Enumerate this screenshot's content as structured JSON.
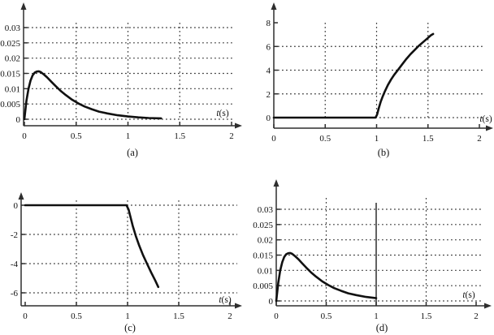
{
  "figure": {
    "description": "Four time-domain response plots arranged in a 2x2 grid, labeled (a) through (d)"
  },
  "chart_data": [
    {
      "type": "line",
      "id": "a",
      "caption": "(a)",
      "xlabel_var": "t",
      "xlabel_unit": "(s)",
      "xlim": [
        0,
        2.1
      ],
      "ylim": [
        0,
        0.033
      ],
      "grid": "dotted",
      "x_ticks": [
        {
          "t": 0,
          "label": "0"
        },
        {
          "t": 0.5,
          "label": "0.5"
        },
        {
          "t": 1,
          "label": "1"
        },
        {
          "t": 1.5,
          "label": "1.5"
        },
        {
          "t": 2,
          "label": "2"
        }
      ],
      "y_ticks": [
        {
          "v": 0,
          "label": "0",
          "grid": true
        },
        {
          "v": 0.005,
          "label": "0.005",
          "grid": true
        },
        {
          "v": 0.01,
          "label": "0.01",
          "grid": true
        },
        {
          "v": 0.015,
          "label": "0.015",
          "grid": true
        },
        {
          "v": 0.02,
          "label": "0.02",
          "grid": true
        },
        {
          "v": 0.025,
          "label": "0.025",
          "grid": true
        },
        {
          "v": 0.03,
          "label": "0.03",
          "grid": true
        }
      ],
      "v_grid": [
        0.5,
        1,
        1.5
      ],
      "points": [
        [
          0,
          0
        ],
        [
          0.02,
          0.006
        ],
        [
          0.04,
          0.01
        ],
        [
          0.06,
          0.0127
        ],
        [
          0.08,
          0.0144
        ],
        [
          0.1,
          0.0153
        ],
        [
          0.12,
          0.0156
        ],
        [
          0.14,
          0.0157
        ],
        [
          0.16,
          0.0154
        ],
        [
          0.19,
          0.0146
        ],
        [
          0.22,
          0.0137
        ],
        [
          0.26,
          0.0123
        ],
        [
          0.3,
          0.0109
        ],
        [
          0.35,
          0.0093
        ],
        [
          0.4,
          0.0079
        ],
        [
          0.46,
          0.0064
        ],
        [
          0.52,
          0.0052
        ],
        [
          0.58,
          0.0042
        ],
        [
          0.65,
          0.0033
        ],
        [
          0.72,
          0.0025
        ],
        [
          0.8,
          0.0019
        ],
        [
          0.9,
          0.0013
        ],
        [
          1.0,
          0.0009
        ],
        [
          1.1,
          0.0006
        ],
        [
          1.2,
          0.0004
        ],
        [
          1.32,
          0.0003
        ]
      ]
    },
    {
      "type": "line",
      "id": "b",
      "caption": "(b)",
      "xlabel_var": "t",
      "xlabel_unit": "(s)",
      "xlim": [
        0,
        2.1
      ],
      "ylim": [
        0,
        8.5
      ],
      "grid": "dotted",
      "x_ticks": [
        {
          "t": 0,
          "label": "0"
        },
        {
          "t": 0.5,
          "label": "0.5"
        },
        {
          "t": 1,
          "label": "1"
        },
        {
          "t": 1.5,
          "label": "1.5"
        },
        {
          "t": 2,
          "label": "2"
        }
      ],
      "y_ticks": [
        {
          "v": 0,
          "label": "0",
          "grid": true
        },
        {
          "v": 2,
          "label": "2",
          "grid": true
        },
        {
          "v": 4,
          "label": "4",
          "grid": true
        },
        {
          "v": 6,
          "label": "6",
          "grid": true
        },
        {
          "v": 8,
          "label": "8",
          "grid": false
        }
      ],
      "v_grid": [
        0.5,
        1,
        1.5
      ],
      "points": [
        [
          0,
          0
        ],
        [
          0.6,
          0
        ],
        [
          0.99,
          0
        ],
        [
          1.005,
          0.25
        ],
        [
          1.02,
          0.75
        ],
        [
          1.04,
          1.35
        ],
        [
          1.06,
          1.8
        ],
        [
          1.08,
          2.2
        ],
        [
          1.11,
          2.75
        ],
        [
          1.14,
          3.2
        ],
        [
          1.17,
          3.6
        ],
        [
          1.21,
          4.05
        ],
        [
          1.25,
          4.5
        ],
        [
          1.29,
          4.95
        ],
        [
          1.33,
          5.35
        ],
        [
          1.37,
          5.7
        ],
        [
          1.41,
          6.05
        ],
        [
          1.45,
          6.35
        ],
        [
          1.49,
          6.65
        ],
        [
          1.53,
          6.95
        ],
        [
          1.55,
          7.05
        ]
      ]
    },
    {
      "type": "line",
      "id": "c",
      "caption": "(c)",
      "xlabel_var": "t",
      "xlabel_unit": "(s)",
      "xlim": [
        0,
        2.1
      ],
      "ylim": [
        -6.5,
        0.5
      ],
      "grid": "dotted",
      "x_ticks": [
        {
          "t": 0,
          "label": "0"
        },
        {
          "t": 0.5,
          "label": "0.5"
        },
        {
          "t": 1,
          "label": "1"
        },
        {
          "t": 1.5,
          "label": "1.5"
        },
        {
          "t": 2,
          "label": "2"
        }
      ],
      "y_ticks": [
        {
          "v": 0,
          "label": "0",
          "grid": true
        },
        {
          "v": -2,
          "label": "-2",
          "grid": true
        },
        {
          "v": -4,
          "label": "-4",
          "grid": true
        },
        {
          "v": -6,
          "label": "-6",
          "grid": true
        }
      ],
      "v_grid": [
        0.5,
        1,
        1.5
      ],
      "points": [
        [
          0,
          0
        ],
        [
          0.6,
          0
        ],
        [
          0.99,
          0
        ],
        [
          1.01,
          -0.3
        ],
        [
          1.03,
          -0.85
        ],
        [
          1.05,
          -1.4
        ],
        [
          1.08,
          -2.1
        ],
        [
          1.11,
          -2.7
        ],
        [
          1.15,
          -3.4
        ],
        [
          1.19,
          -4.0
        ],
        [
          1.23,
          -4.6
        ],
        [
          1.27,
          -5.15
        ],
        [
          1.3,
          -5.6
        ]
      ]
    },
    {
      "type": "line",
      "id": "d",
      "caption": "(d)",
      "xlabel_var": "t",
      "xlabel_unit": "(s)",
      "xlim": [
        0,
        2.1
      ],
      "ylim": [
        0,
        0.033
      ],
      "grid": "dotted",
      "x_ticks": [
        {
          "t": 0,
          "label": "0"
        },
        {
          "t": 0.5,
          "label": "0.5"
        },
        {
          "t": 1,
          "label": "1"
        },
        {
          "t": 1.5,
          "label": "1.5"
        },
        {
          "t": 2,
          "label": "2"
        }
      ],
      "y_ticks": [
        {
          "v": 0,
          "label": "0",
          "grid": true
        },
        {
          "v": 0.005,
          "label": "0.005",
          "grid": true
        },
        {
          "v": 0.01,
          "label": "0.01",
          "grid": true
        },
        {
          "v": 0.015,
          "label": "0.015",
          "grid": true
        },
        {
          "v": 0.02,
          "label": "0.02",
          "grid": true
        },
        {
          "v": 0.025,
          "label": "0.025",
          "grid": true
        },
        {
          "v": 0.03,
          "label": "0.03",
          "grid": true
        }
      ],
      "v_grid": [
        0.5,
        1.5
      ],
      "vline": {
        "t": 1
      },
      "points": [
        [
          0,
          0
        ],
        [
          0.02,
          0.006
        ],
        [
          0.04,
          0.01
        ],
        [
          0.06,
          0.0127
        ],
        [
          0.08,
          0.0144
        ],
        [
          0.1,
          0.0153
        ],
        [
          0.12,
          0.0156
        ],
        [
          0.14,
          0.0157
        ],
        [
          0.16,
          0.0154
        ],
        [
          0.19,
          0.0146
        ],
        [
          0.22,
          0.0137
        ],
        [
          0.26,
          0.0123
        ],
        [
          0.3,
          0.0109
        ],
        [
          0.35,
          0.0093
        ],
        [
          0.4,
          0.0079
        ],
        [
          0.46,
          0.0064
        ],
        [
          0.52,
          0.0052
        ],
        [
          0.58,
          0.0042
        ],
        [
          0.65,
          0.0033
        ],
        [
          0.72,
          0.0025
        ],
        [
          0.8,
          0.0019
        ],
        [
          0.9,
          0.0013
        ],
        [
          1.0,
          0.0009
        ]
      ]
    }
  ],
  "style": {
    "curve_color": "#111111",
    "axis_color": "#2e2e2e",
    "grid_color": "#3a3a3a",
    "background": "#ffffff"
  }
}
